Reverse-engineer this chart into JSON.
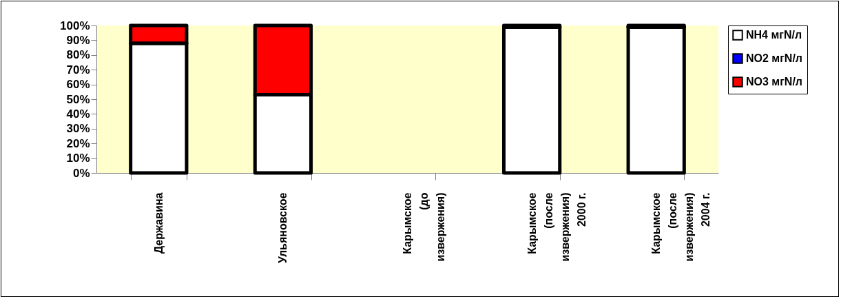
{
  "chart_data": {
    "type": "bar",
    "stacked": true,
    "categories": [
      "Державина",
      "Ульяновское",
      "Карымское\n(до\nизвержения)",
      "Карымское\n(после\nизвержения)\n2000 г.",
      "Карымское\n(после\nизвержения)\n2004 г."
    ],
    "series": [
      {
        "name": "NH4 мгN/л",
        "color": "#ffffff",
        "values": [
          88,
          53,
          null,
          99,
          99
        ]
      },
      {
        "name": "NO2 мгN/л",
        "color": "#0000ff",
        "values": [
          0,
          0,
          null,
          0,
          0
        ]
      },
      {
        "name": "NO3 мгN/л",
        "color": "#ff0000",
        "values": [
          12,
          47,
          null,
          1,
          1
        ]
      }
    ],
    "ylim": [
      0,
      100
    ],
    "yticks": [
      {
        "value": 0,
        "label": "0%"
      },
      {
        "value": 10,
        "label": "10%"
      },
      {
        "value": 20,
        "label": "20%"
      },
      {
        "value": 30,
        "label": "30%"
      },
      {
        "value": 40,
        "label": "40%"
      },
      {
        "value": 50,
        "label": "50%"
      },
      {
        "value": 60,
        "label": "60%"
      },
      {
        "value": 70,
        "label": "70%"
      },
      {
        "value": 80,
        "label": "80%"
      },
      {
        "value": 90,
        "label": "90%"
      },
      {
        "value": 100,
        "label": "100%"
      }
    ],
    "grid": false,
    "legend": "top right"
  }
}
